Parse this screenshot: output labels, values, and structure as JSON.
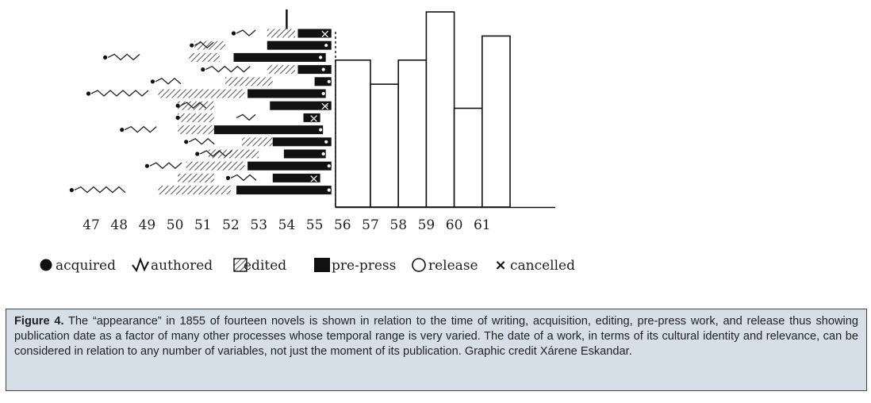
{
  "chart_data": {
    "type": "timeline-bar",
    "x_ticks": [
      "47",
      "48",
      "49",
      "50",
      "51",
      "52",
      "53",
      "54",
      "55",
      "56",
      "57",
      "58",
      "59",
      "60",
      "61"
    ],
    "appearance_year": 1855,
    "novels": [
      {
        "acquired": 52.1,
        "authored": [
          52.2,
          53.0
        ],
        "edited": [
          53.3,
          54.3
        ],
        "prepress": [
          54.4,
          55.6
        ],
        "release": null,
        "cancelled": true
      },
      {
        "acquired": 50.6,
        "authored": [
          50.7,
          51.5
        ],
        "edited": [
          50.7,
          51.8
        ],
        "prepress": [
          53.3,
          55.6
        ],
        "release": 55.5,
        "cancelled": false
      },
      {
        "acquired": 47.5,
        "authored": [
          47.6,
          48.9
        ],
        "edited": [
          50.5,
          51.6
        ],
        "prepress": [
          52.1,
          55.4
        ],
        "release": 55.3,
        "cancelled": false
      },
      {
        "acquired": 51.0,
        "authored": [
          51.1,
          52.8
        ],
        "edited": [
          53.3,
          54.3
        ],
        "prepress": [
          54.4,
          55.6
        ],
        "release": 55.4,
        "cancelled": false
      },
      {
        "acquired": 49.2,
        "authored": [
          49.3,
          50.4
        ],
        "edited": [
          51.8,
          53.5
        ],
        "prepress": [
          55.0,
          55.6
        ],
        "release": 55.6,
        "cancelled": false
      },
      {
        "acquired": 46.9,
        "authored": [
          47.0,
          49.1
        ],
        "edited": [
          49.4,
          52.5
        ],
        "prepress": [
          52.6,
          55.4
        ],
        "release": 55.4,
        "cancelled": false
      },
      {
        "acquired": 50.1,
        "authored": [
          50.2,
          51.2
        ],
        "edited": [
          50.1,
          51.4
        ],
        "prepress": [
          53.4,
          55.6
        ],
        "release": 55.5,
        "cancelled": true
      },
      {
        "acquired": 50.1,
        "authored": [
          52.2,
          52.9
        ],
        "edited": [
          50.1,
          51.4
        ],
        "prepress": [
          54.6,
          55.2
        ],
        "release": null,
        "cancelled": true
      },
      {
        "acquired": 48.1,
        "authored": [
          48.2,
          49.4
        ],
        "edited": [
          50.1,
          51.4
        ],
        "prepress": [
          51.4,
          55.3
        ],
        "release": 55.3,
        "cancelled": false
      },
      {
        "acquired": 50.4,
        "authored": [
          50.5,
          51.6
        ],
        "edited": [
          52.4,
          53.5
        ],
        "prepress": [
          53.5,
          55.6
        ],
        "release": 55.5,
        "cancelled": false
      },
      {
        "acquired": 50.8,
        "authored": [
          50.9,
          52.1
        ],
        "edited": [
          51.2,
          53.0
        ],
        "prepress": [
          53.9,
          55.4
        ],
        "release": 55.4,
        "cancelled": false
      },
      {
        "acquired": 49.0,
        "authored": [
          49.1,
          50.3
        ],
        "edited": [
          50.4,
          52.5
        ],
        "prepress": [
          52.6,
          55.6
        ],
        "release": 55.6,
        "cancelled": false
      },
      {
        "acquired": 51.9,
        "authored": [
          52.0,
          53.0
        ],
        "edited": [
          50.1,
          51.4
        ],
        "prepress": [
          53.5,
          55.2
        ],
        "release": null,
        "cancelled": true
      },
      {
        "acquired": 46.3,
        "authored": [
          46.4,
          48.4
        ],
        "edited": [
          49.4,
          52.0
        ],
        "prepress": [
          52.2,
          55.6
        ],
        "release": 55.6,
        "cancelled": false
      }
    ],
    "histogram": {
      "categories": [
        "56",
        "57",
        "58",
        "59",
        "60",
        "61"
      ],
      "values": [
        6.1,
        5.1,
        6.1,
        8.1,
        4.1,
        7.1
      ],
      "ylim": [
        0,
        8.2
      ]
    },
    "legend": [
      {
        "key": "acquired",
        "label": "acquired"
      },
      {
        "key": "authored",
        "label": "authored"
      },
      {
        "key": "edited",
        "label": "edited"
      },
      {
        "key": "prepress",
        "label": "pre-press"
      },
      {
        "key": "release",
        "label": "release"
      },
      {
        "key": "cancelled",
        "label": "cancelled"
      }
    ],
    "title": "",
    "xlabel": "",
    "ylabel": ""
  },
  "caption": {
    "label": "Figure 4.",
    "text": "The “appearance” in 1855 of fourteen novels is shown in relation to the time of writing, acquisition, editing, pre-press work, and release thus showing publication date as a factor of many other processes whose temporal range is very varied. The date of a work, in terms of its cultural identity and relevance, can be considered in relation to any number of variables, not just the moment of its publication. Graphic credit Xárene Eskandar."
  }
}
